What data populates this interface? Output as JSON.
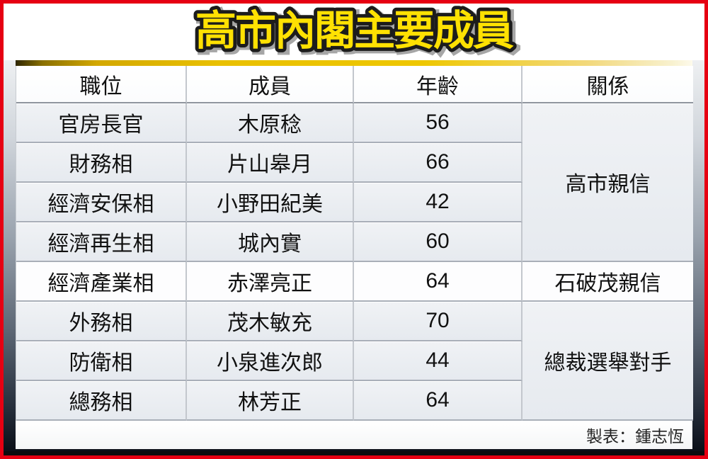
{
  "title": "高市內閣主要成員",
  "colors": {
    "border_red": "#e60012",
    "title_yellow": "#ffe102",
    "title_outline": "#1c1c1c",
    "gold_bar": "#e9c000",
    "row_gray": "#e9edf2",
    "row_white": "#fdfdfe",
    "text": "#111111"
  },
  "table": {
    "headers": {
      "position": "職位",
      "member": "成員",
      "age": "年齡",
      "relation": "關係"
    },
    "rows": [
      {
        "position": "官房長官",
        "member": "木原稔",
        "age": "56"
      },
      {
        "position": "財務相",
        "member": "片山皋月",
        "age": "66"
      },
      {
        "position": "經濟安保相",
        "member": "小野田紀美",
        "age": "42"
      },
      {
        "position": "經濟再生相",
        "member": "城內實",
        "age": "60"
      },
      {
        "position": "經濟產業相",
        "member": "赤澤亮正",
        "age": "64"
      },
      {
        "position": "外務相",
        "member": "茂木敏充",
        "age": "70"
      },
      {
        "position": "防衛相",
        "member": "小泉進次郎",
        "age": "44"
      },
      {
        "position": "總務相",
        "member": "林芳正",
        "age": "64"
      }
    ],
    "relations": [
      {
        "label": "高市親信",
        "rows": "1-4"
      },
      {
        "label": "石破茂親信",
        "rows": "5"
      },
      {
        "label": "總裁選舉對手",
        "rows": "6-8"
      }
    ]
  },
  "footer": {
    "credit": "製表：鍾志恆"
  }
}
